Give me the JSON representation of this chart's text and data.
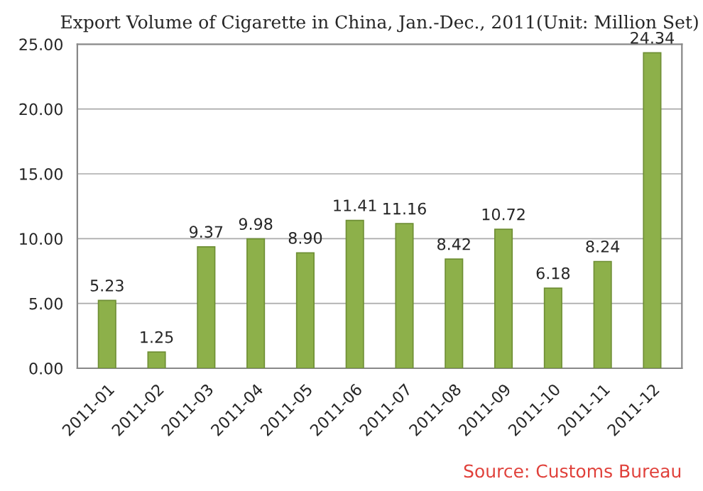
{
  "chart_data": {
    "type": "bar",
    "title": "Export Volume of Cigarette in China, Jan.-Dec., 2011(Unit: Million Set)",
    "categories": [
      "2011-01",
      "2011-02",
      "2011-03",
      "2011-04",
      "2011-05",
      "2011-06",
      "2011-07",
      "2011-08",
      "2011-09",
      "2011-10",
      "2011-11",
      "2011-12"
    ],
    "values": [
      5.23,
      1.25,
      9.37,
      9.98,
      8.9,
      11.41,
      11.16,
      8.42,
      10.72,
      6.18,
      8.24,
      24.34
    ],
    "value_labels": [
      "5.23",
      "1.25",
      "9.37",
      "9.98",
      "8.90",
      "11.41",
      "11.16",
      "8.42",
      "10.72",
      "6.18",
      "8.24",
      "24.34"
    ],
    "color": "#8db04a",
    "ylim": [
      0,
      25
    ],
    "yticks": [
      {
        "value": 0,
        "label": "0.00"
      },
      {
        "value": 5,
        "label": "5.00"
      },
      {
        "value": 10,
        "label": "10.00"
      },
      {
        "value": 15,
        "label": "15.00"
      },
      {
        "value": 20,
        "label": "20.00"
      },
      {
        "value": 25,
        "label": "25.00"
      }
    ],
    "grid": "y",
    "annotations": [
      "Source: Customs Bureau"
    ]
  }
}
